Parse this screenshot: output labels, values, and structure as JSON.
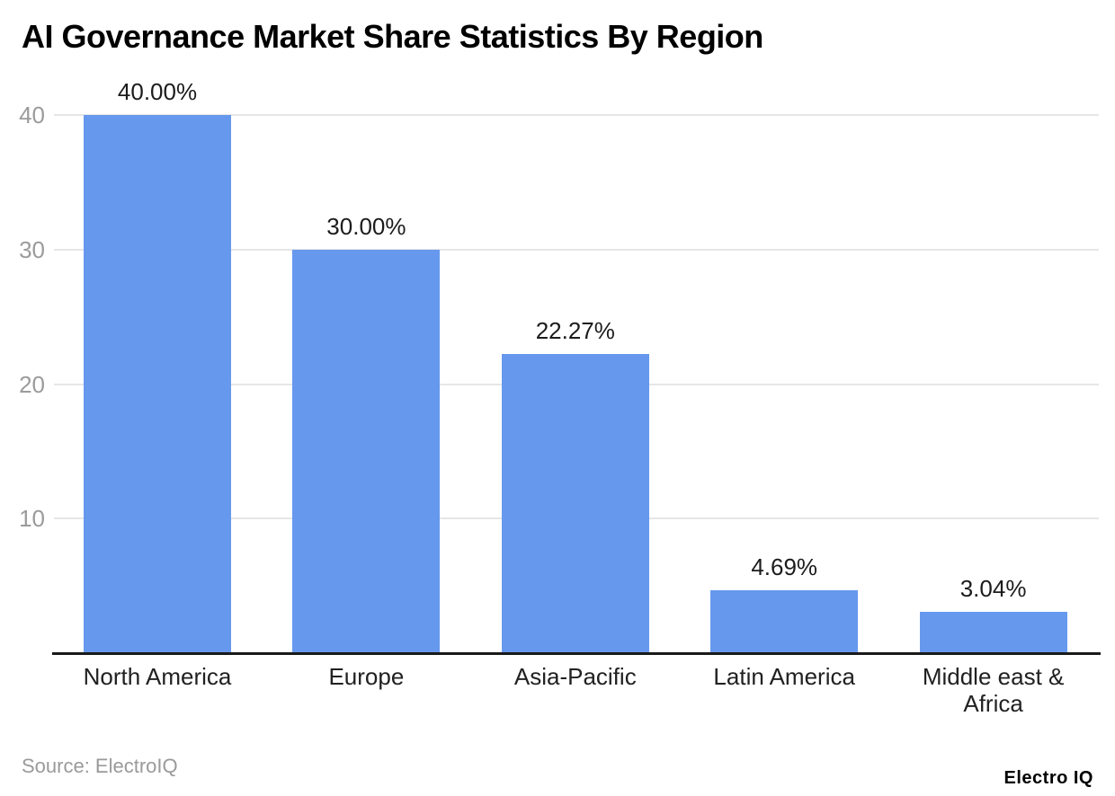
{
  "chart_data": {
    "type": "bar",
    "title": "AI Governance Market Share Statistics By Region",
    "categories": [
      "North America",
      "Europe",
      "Asia-Pacific",
      "Latin America",
      "Middle east & Africa"
    ],
    "values": [
      40.0,
      30.0,
      22.27,
      4.69,
      3.04
    ],
    "value_labels": [
      "40.00%",
      "30.00%",
      "22.27%",
      "4.69%",
      "3.04%"
    ],
    "yticks": [
      10,
      20,
      30,
      40
    ],
    "ylim": [
      0,
      40
    ],
    "xlabel": "",
    "ylabel": "",
    "grid": "horizontal gridlines on",
    "legend": "none",
    "source": "Source: ElectroIQ",
    "logo_text": "Electro IQ",
    "colors": {
      "bar": "#6699EE",
      "gridline": "#E6E6E6",
      "axis_line": "#1A1A1A",
      "y_tick_label": "#9B9B9B",
      "value_label": "#1C1C1C",
      "category_label": "#212121",
      "title": "#000000",
      "background": "#FFFFFF"
    }
  }
}
